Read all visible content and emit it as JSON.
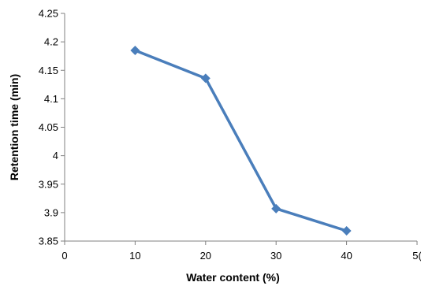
{
  "chart_data": {
    "type": "line",
    "title": "",
    "xlabel": "Water content (%)",
    "ylabel": "Retention time (min)",
    "xlim": [
      0,
      50
    ],
    "ylim": [
      3.85,
      4.25
    ],
    "x_ticks": [
      "0",
      "10",
      "20",
      "30",
      "40",
      "5("
    ],
    "y_ticks": [
      "3.85",
      "3.9",
      "3.95",
      "4",
      "4.05",
      "4.1",
      "4.15",
      "4.2",
      "4.25"
    ],
    "grid": false,
    "legend": "none",
    "series": [
      {
        "color": "#4a7ebb",
        "marker": "diamond",
        "x": [
          10,
          20,
          30,
          40
        ],
        "y": [
          4.185,
          4.136,
          3.907,
          3.868
        ]
      }
    ]
  }
}
